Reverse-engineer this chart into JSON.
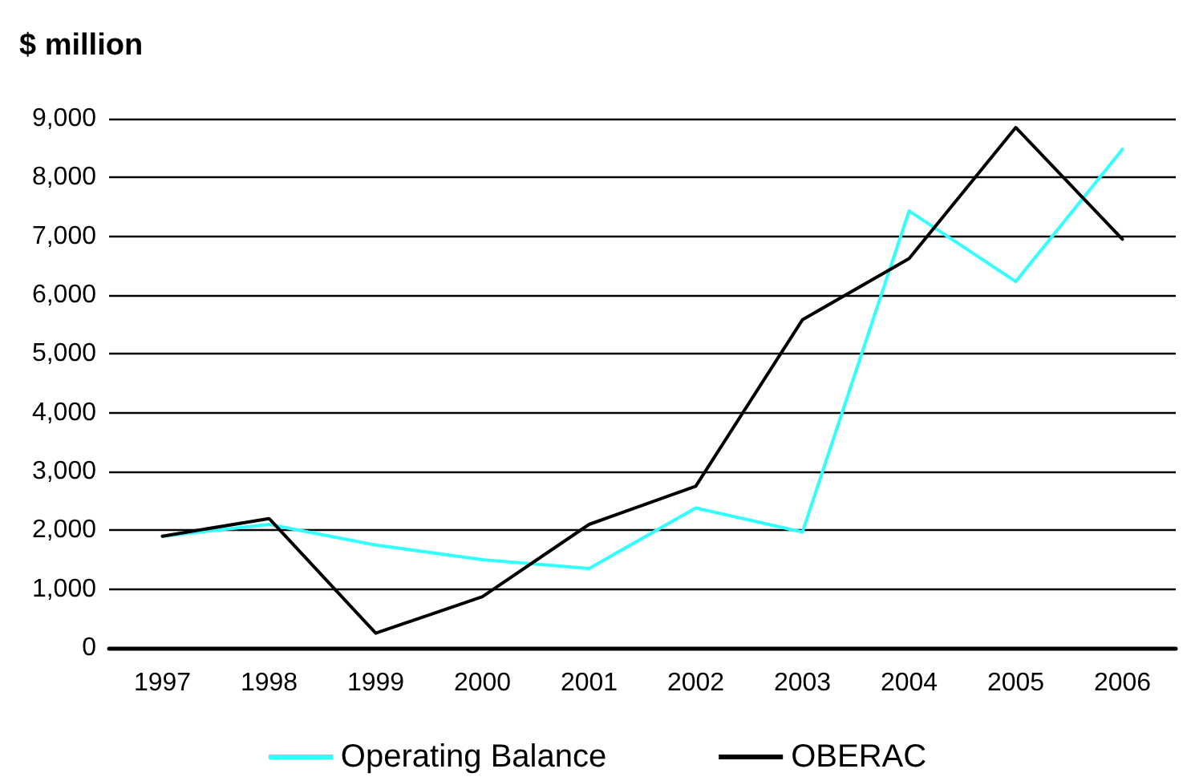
{
  "chart_data": {
    "type": "line",
    "ylabel": "$ million",
    "categories": [
      "1997",
      "1998",
      "1999",
      "2000",
      "2001",
      "2002",
      "2003",
      "2004",
      "2005",
      "2006"
    ],
    "series": [
      {
        "name": "Operating Balance",
        "color": "#33ffff",
        "values": [
          1900,
          2100,
          1750,
          1500,
          1350,
          2380,
          1970,
          7430,
          6230,
          8480
        ]
      },
      {
        "name": "OBERAC",
        "color": "#000000",
        "values": [
          1900,
          2200,
          250,
          870,
          2100,
          2750,
          5580,
          6620,
          8850,
          6950
        ]
      }
    ],
    "ylim": [
      0,
      9000
    ],
    "yticks": [
      0,
      {
        "value": 1000,
        "label": "1,000"
      },
      {
        "value": 2000,
        "label": "2,000"
      },
      {
        "value": 3000,
        "label": "3,000"
      },
      {
        "value": 4000,
        "label": "4,000"
      },
      {
        "value": 5000,
        "label": "5,000"
      },
      {
        "value": 6000,
        "label": "6,000"
      },
      {
        "value": 7000,
        "label": "7,000"
      },
      {
        "value": 8000,
        "label": "8,000"
      },
      {
        "value": 9000,
        "label": "9,000"
      }
    ],
    "grid": "y",
    "legend": "bottom",
    "marker": "none",
    "line_style": "solid"
  }
}
